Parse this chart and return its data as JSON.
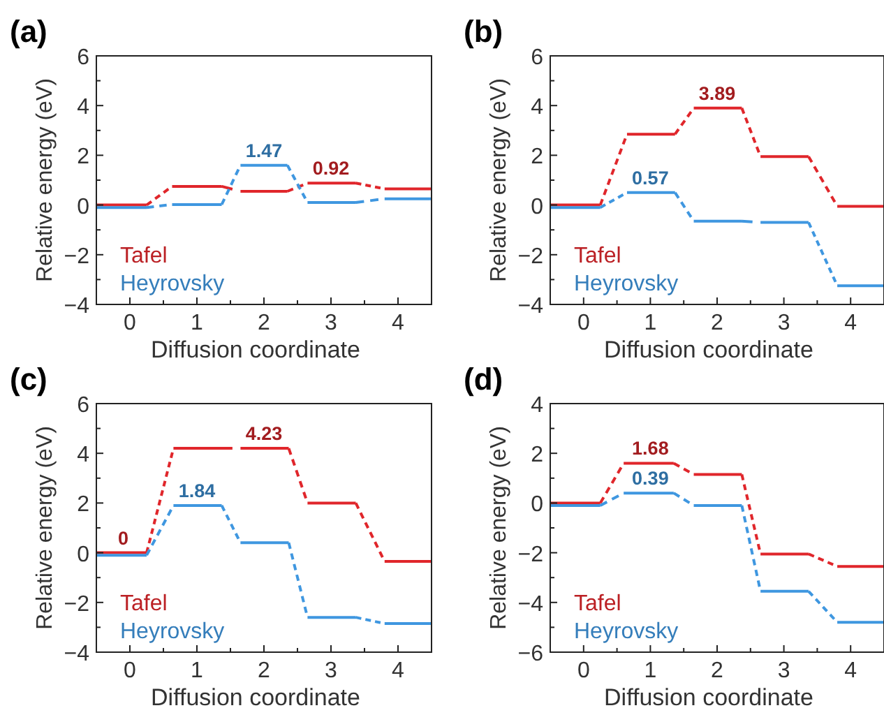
{
  "chart_data": [
    {
      "type": "line",
      "title": "(a)",
      "xlabel": "Diffusion coordinate",
      "ylabel": "Relative energy (eV)",
      "xlim": [
        -0.5,
        4.5
      ],
      "xticks": [
        0,
        1,
        2,
        3,
        4
      ],
      "ylim": [
        -4,
        6
      ],
      "yticks": [
        -4,
        -2,
        0,
        2,
        4,
        6
      ],
      "legend": "bottom left",
      "grid": false,
      "line_style": "dashed",
      "x": [
        -0.5,
        0.25,
        0.63,
        1.37,
        1.65,
        2.35,
        2.65,
        3.37,
        3.8,
        4.5
      ],
      "series": [
        {
          "name": "Tafel",
          "color": "#e0262b",
          "values": [
            0,
            0,
            0.75,
            0.75,
            0.55,
            0.55,
            0.88,
            0.88,
            0.65,
            0.65
          ]
        },
        {
          "name": "Heyrovsky",
          "color": "#3f97e0",
          "values": [
            -0.1,
            -0.1,
            0.02,
            0.02,
            1.6,
            1.6,
            0.1,
            0.1,
            0.25,
            0.25
          ]
        }
      ],
      "annotations": [
        {
          "text": "1.47",
          "x": 2,
          "y": 1.6
        },
        {
          "text": "0.92",
          "x": 3,
          "y": 0.88
        }
      ]
    },
    {
      "type": "line",
      "title": "(b)",
      "xlabel": "Diffusion coordinate",
      "ylabel": "Relative energy (eV)",
      "xlim": [
        -0.5,
        4.5
      ],
      "xticks": [
        0,
        1,
        2,
        3,
        4
      ],
      "ylim": [
        -4,
        6
      ],
      "yticks": [
        -4,
        -2,
        0,
        2,
        4,
        6
      ],
      "legend": "bottom left",
      "grid": false,
      "line_style": "dashed",
      "x": [
        -0.5,
        0.25,
        0.65,
        1.37,
        1.65,
        2.37,
        2.65,
        3.37,
        3.8,
        4.5
      ],
      "series": [
        {
          "name": "Tafel",
          "color": "#e0262b",
          "values": [
            0,
            0,
            2.85,
            2.85,
            3.9,
            3.9,
            1.95,
            1.95,
            -0.05,
            -0.05
          ]
        },
        {
          "name": "Heyrovsky",
          "color": "#3f97e0",
          "values": [
            -0.1,
            -0.1,
            0.5,
            0.5,
            -0.65,
            -0.65,
            -0.7,
            -0.7,
            -3.25,
            -3.25
          ]
        }
      ],
      "annotations": [
        {
          "text": "3.89",
          "x": 2,
          "y": 3.9
        },
        {
          "text": "0.57",
          "x": 1,
          "y": 0.5
        }
      ]
    },
    {
      "type": "line",
      "title": "(c)",
      "xlabel": "Diffusion coordinate",
      "ylabel": "Relative energy (eV)",
      "xlim": [
        -0.5,
        4.5
      ],
      "xticks": [
        0,
        1,
        2,
        3,
        4
      ],
      "ylim": [
        -4,
        6
      ],
      "yticks": [
        -4,
        -2,
        0,
        2,
        4,
        6
      ],
      "legend": "bottom left",
      "grid": false,
      "line_style": "dashed",
      "x": [
        -0.5,
        0.25,
        0.65,
        1.37,
        1.65,
        2.37,
        2.65,
        3.37,
        3.8,
        4.5
      ],
      "series": [
        {
          "name": "Tafel",
          "color": "#e0262b",
          "values": [
            0,
            0,
            4.2,
            4.2,
            4.2,
            4.2,
            2.0,
            2.0,
            -0.35,
            -0.35
          ]
        },
        {
          "name": "Heyrovsky",
          "color": "#3f97e0",
          "values": [
            -0.1,
            -0.1,
            1.9,
            1.9,
            0.4,
            0.4,
            -2.6,
            -2.6,
            -2.85,
            -2.85
          ]
        }
      ],
      "annotations": [
        {
          "text": "0",
          "x": -0.1,
          "y": 0
        },
        {
          "text": "4.23",
          "x": 2,
          "y": 4.2
        },
        {
          "text": "1.84",
          "x": 1,
          "y": 1.9
        }
      ]
    },
    {
      "type": "line",
      "title": "(d)",
      "xlabel": "Diffusion coordinate",
      "ylabel": "Relative energy (eV)",
      "xlim": [
        -0.5,
        4.5
      ],
      "xticks": [
        0,
        1,
        2,
        3,
        4
      ],
      "ylim": [
        -6,
        4
      ],
      "yticks": [
        -6,
        -4,
        -2,
        0,
        2,
        4
      ],
      "legend": "bottom left",
      "grid": false,
      "line_style": "dashed",
      "x": [
        -0.5,
        0.25,
        0.6,
        1.35,
        1.65,
        2.37,
        2.65,
        3.37,
        3.8,
        4.5
      ],
      "series": [
        {
          "name": "Tafel",
          "color": "#e0262b",
          "values": [
            0,
            0,
            1.6,
            1.6,
            1.15,
            1.15,
            -2.05,
            -2.05,
            -2.55,
            -2.55
          ]
        },
        {
          "name": "Heyrovsky",
          "color": "#3f97e0",
          "values": [
            -0.1,
            -0.1,
            0.4,
            0.4,
            -0.1,
            -0.1,
            -3.55,
            -3.55,
            -4.8,
            -4.8
          ]
        }
      ],
      "annotations": [
        {
          "text": "1.68",
          "x": 1,
          "y": 1.6
        },
        {
          "text": "0.39",
          "x": 1,
          "y": 0.4
        }
      ]
    }
  ]
}
